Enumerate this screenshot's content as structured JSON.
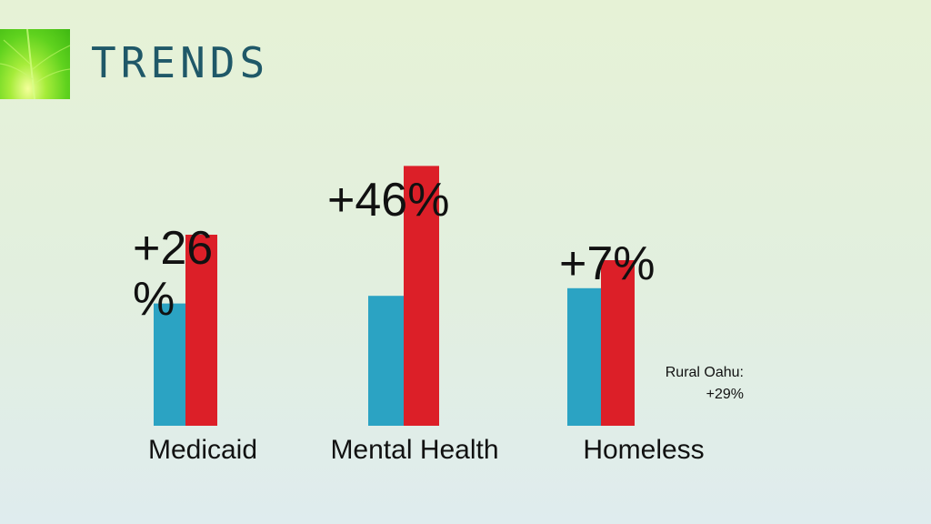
{
  "slide": {
    "title": "TRENDS",
    "note_lines": [
      "Rural Oahu:",
      "+29%"
    ]
  },
  "colors": {
    "series_a": "#2ba3c3",
    "series_b": "#dc1f28",
    "title": "#1f5868"
  },
  "chart_data": {
    "type": "bar",
    "categories": [
      "Medicaid",
      "Mental Health",
      "Homeless"
    ],
    "series": [
      {
        "values": [
          48,
          51,
          54
        ]
      },
      {
        "values": [
          75,
          102,
          65
        ]
      }
    ],
    "data_labels": [
      {
        "category": "Medicaid",
        "lines": [
          "+26",
          "%"
        ]
      },
      {
        "category": "Mental Health",
        "lines": [
          "+46%"
        ]
      },
      {
        "category": "Homeless",
        "lines": [
          "+7%"
        ]
      }
    ],
    "ylim": [
      0,
      110
    ],
    "grid": false,
    "legend": "none"
  }
}
